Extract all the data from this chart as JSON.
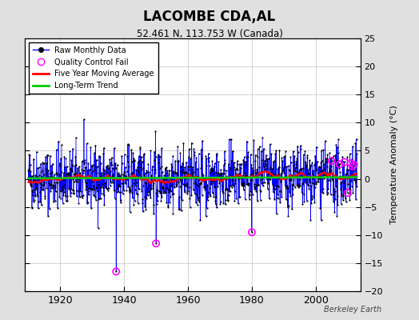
{
  "title": "LACOMBE CDA,AL",
  "subtitle": "52.461 N, 113.753 W (Canada)",
  "ylabel": "Temperature Anomaly (°C)",
  "attribution": "Berkeley Earth",
  "year_start": 1910,
  "year_end": 2013,
  "ylim": [
    -20,
    25
  ],
  "yticks": [
    -20,
    -15,
    -10,
    -5,
    0,
    5,
    10,
    15,
    20,
    25
  ],
  "background_color": "#e0e0e0",
  "plot_bg_color": "#ffffff",
  "grid_color": "#c0c0c0",
  "line_color": "#0000ff",
  "dot_color": "#000000",
  "ma_color": "#ff0000",
  "trend_color": "#00cc00",
  "qc_color": "#ff00ff",
  "seed": 42,
  "num_months": 1236,
  "amplitude": 3.0,
  "trend_slope": 0.00015,
  "qc_fail_indices": [
    330,
    480,
    840,
    1140,
    1170,
    1188,
    1200,
    1212,
    1218,
    1224
  ],
  "qc_fail_values": [
    -16.5,
    -11.5,
    -9.5,
    3.2,
    2.6,
    3.0,
    -2.5,
    2.8,
    2.2,
    2.5
  ],
  "xticks": [
    1920,
    1940,
    1960,
    1980,
    2000
  ],
  "figsize": [
    5.24,
    4.0
  ],
  "dpi": 100
}
